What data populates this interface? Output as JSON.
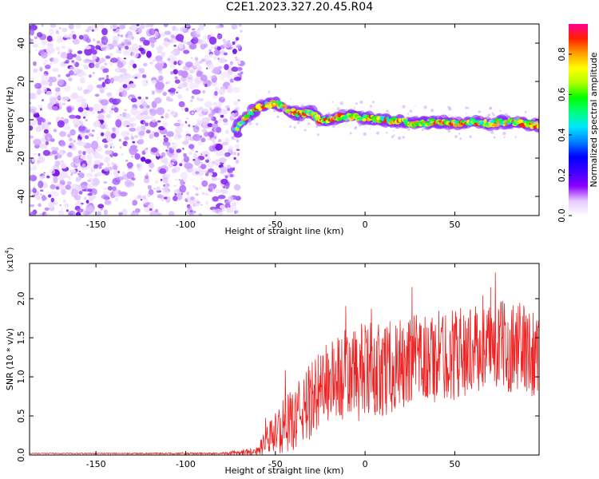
{
  "title": "C2E1.2023.327.20.45.R04",
  "colors": {
    "spectrum_edge": "#7b00e0",
    "snr_line": "#ee2222",
    "colorbar": [
      "#ffffff",
      "#e6c8ff",
      "#8b00ff",
      "#3b00ff",
      "#0000ff",
      "#0080ff",
      "#00e5ff",
      "#00ff80",
      "#00ff00",
      "#b0ff00",
      "#ffff00",
      "#ffa000",
      "#ff2000",
      "#ff0090"
    ]
  },
  "chart_data": [
    {
      "type": "heatmap",
      "xlabel": "Height of straight line (km)",
      "ylabel": "Frequency (Hz)",
      "xlim": [
        -187,
        97
      ],
      "ylim": [
        -50,
        50
      ],
      "xticks": [
        -150,
        -100,
        -50,
        0,
        50
      ],
      "yticks": [
        -40,
        -20,
        0,
        20,
        40
      ],
      "noise_region_x": [
        -187,
        -70
      ],
      "signal_region_x": [
        -72,
        97
      ],
      "ridge": {
        "x": [
          -72,
          -65,
          -58,
          -50,
          -45,
          -40,
          -35,
          -30,
          -25,
          -20,
          -10,
          0,
          10,
          20,
          30,
          40,
          50,
          60,
          70,
          80,
          90,
          97
        ],
        "y": [
          -5,
          3,
          7,
          9,
          6,
          4,
          3,
          4,
          -1,
          0,
          2,
          1,
          0,
          -1,
          -2,
          -1,
          -2,
          -1,
          -2,
          -1,
          -2,
          -3
        ]
      },
      "colorbar": {
        "label": "Normalized spectral amplitude",
        "range": [
          0.0,
          0.95
        ],
        "ticks": [
          0.0,
          0.2,
          0.4,
          0.6,
          0.8
        ]
      }
    },
    {
      "type": "line",
      "xlabel": "Height of straight line (km)",
      "ylabel": "SNR (10 * v/v)",
      "y_multiplier": "(x10",
      "y_multiplier_exp": "4",
      "y_multiplier_close": ")",
      "xlim": [
        -187,
        97
      ],
      "ylim": [
        0,
        2.45
      ],
      "xticks": [
        -150,
        -100,
        -50,
        0,
        50
      ],
      "yticks": [
        "0.0",
        "0.5",
        "1.0",
        "1.5",
        "2.0"
      ],
      "envelope": {
        "x": [
          -187,
          -80,
          -60,
          -52,
          -45,
          -40,
          -30,
          -20,
          -10,
          0,
          10,
          20,
          30,
          40,
          50,
          60,
          70,
          80,
          90,
          97
        ],
        "mean": [
          0.02,
          0.02,
          0.05,
          0.25,
          0.38,
          0.45,
          0.7,
          0.95,
          1.0,
          1.05,
          1.1,
          1.15,
          1.2,
          1.25,
          1.3,
          1.35,
          1.4,
          1.4,
          1.35,
          1.3
        ],
        "spread": [
          0.005,
          0.01,
          0.06,
          0.25,
          0.35,
          0.4,
          0.5,
          0.55,
          0.6,
          0.65,
          0.6,
          0.6,
          0.6,
          0.6,
          0.6,
          0.55,
          0.55,
          0.6,
          0.6,
          0.55
        ]
      }
    }
  ]
}
